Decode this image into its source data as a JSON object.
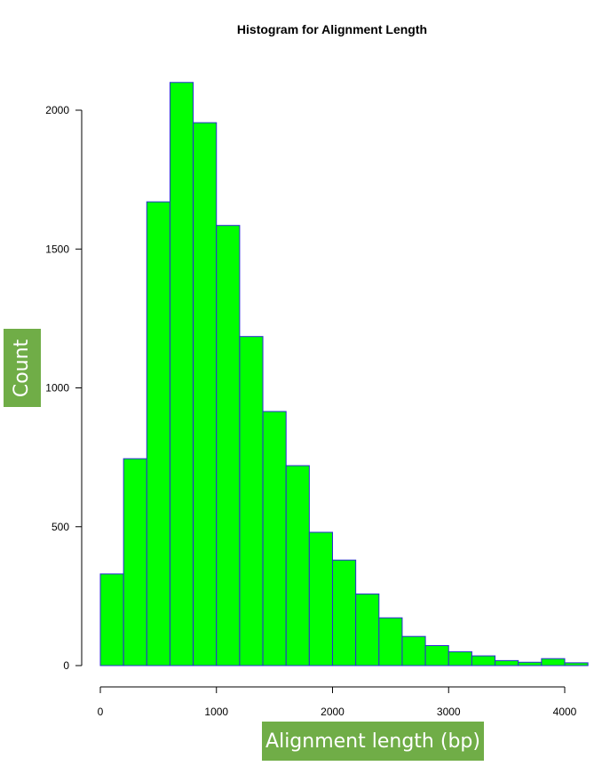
{
  "colors": {
    "bar_fill": "#00ff00",
    "bar_stroke": "#2b2bd6",
    "label_box": "#70ad47",
    "axis": "#000000"
  },
  "chart_data": {
    "type": "bar",
    "title": "Histogram for Alignment Length",
    "xlabel": "Alignment length (bp)",
    "ylabel": "Count",
    "bin_width": 200,
    "bin_edges": [
      0,
      200,
      400,
      600,
      800,
      1000,
      1200,
      1400,
      1600,
      1800,
      2000,
      2200,
      2400,
      2600,
      2800,
      3000,
      3200,
      3400,
      3600,
      3800,
      4000,
      4200
    ],
    "values": [
      330,
      745,
      1670,
      2100,
      1955,
      1585,
      1185,
      915,
      720,
      480,
      380,
      258,
      172,
      105,
      72,
      50,
      35,
      18,
      12,
      25,
      10
    ],
    "xlim": [
      0,
      4200
    ],
    "ylim": [
      0,
      2100
    ],
    "xticks": [
      0,
      1000,
      2000,
      3000,
      4000
    ],
    "xtick_labels": [
      "0",
      "1000",
      "2000",
      "3000",
      "4000"
    ],
    "yticks": [
      0,
      500,
      1000,
      1500,
      2000
    ],
    "ytick_labels": [
      "0",
      "500",
      "1000",
      "1500",
      "2000"
    ],
    "grid": false,
    "legend": "none"
  }
}
